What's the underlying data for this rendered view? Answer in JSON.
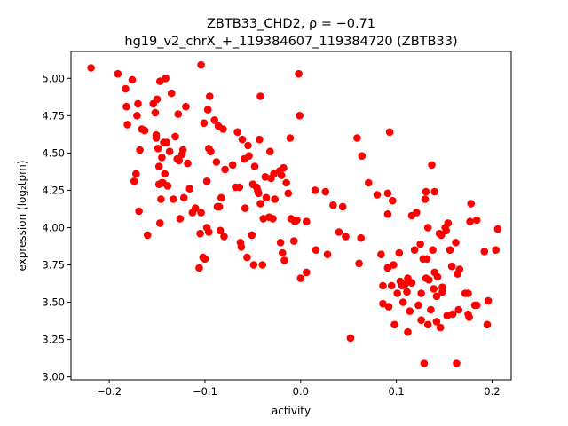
{
  "chart_data": {
    "type": "scatter",
    "title_line1": "ZBTB33_CHD2, ρ = −0.71",
    "title_line2": "hg19_v2_chrX_+_119384607_119384720 (ZBTB33)",
    "xlabel": "activity",
    "ylabel": "expression (log₂tpm)",
    "xlim": [
      -0.24,
      0.22
    ],
    "ylim": [
      2.98,
      5.18
    ],
    "grid": false,
    "marker_color": "#ff0000",
    "x_ticks": [
      -0.2,
      -0.1,
      0.0,
      0.1,
      0.2
    ],
    "x_tick_labels": [
      "−0.2",
      "−0.1",
      "0.0",
      "0.1",
      "0.2"
    ],
    "y_ticks": [
      3.0,
      3.25,
      3.5,
      3.75,
      4.0,
      4.25,
      4.5,
      4.75,
      5.0
    ],
    "y_tick_labels": [
      "3.00",
      "3.25",
      "3.50",
      "3.75",
      "4.00",
      "4.25",
      "4.50",
      "4.75",
      "5.00"
    ],
    "points": [
      [
        -0.219,
        5.07
      ],
      [
        -0.191,
        5.03
      ],
      [
        -0.183,
        4.93
      ],
      [
        -0.182,
        4.81
      ],
      [
        -0.181,
        4.69
      ],
      [
        -0.176,
        4.99
      ],
      [
        -0.174,
        4.31
      ],
      [
        -0.172,
        4.36
      ],
      [
        -0.171,
        4.75
      ],
      [
        -0.17,
        4.83
      ],
      [
        -0.169,
        4.11
      ],
      [
        -0.168,
        4.52
      ],
      [
        -0.166,
        4.66
      ],
      [
        -0.163,
        4.65
      ],
      [
        -0.16,
        3.95
      ],
      [
        -0.154,
        4.83
      ],
      [
        -0.152,
        4.77
      ],
      [
        -0.151,
        4.62
      ],
      [
        -0.151,
        4.6
      ],
      [
        -0.15,
        4.86
      ],
      [
        -0.149,
        4.53
      ],
      [
        -0.148,
        4.41
      ],
      [
        -0.148,
        4.29
      ],
      [
        -0.147,
        4.98
      ],
      [
        -0.147,
        4.03
      ],
      [
        -0.146,
        4.19
      ],
      [
        -0.145,
        4.47
      ],
      [
        -0.145,
        4.3
      ],
      [
        -0.144,
        4.3
      ],
      [
        -0.143,
        4.57
      ],
      [
        -0.142,
        4.36
      ],
      [
        -0.141,
        5.0
      ],
      [
        -0.14,
        4.57
      ],
      [
        -0.139,
        4.28
      ],
      [
        -0.137,
        4.51
      ],
      [
        -0.135,
        4.9
      ],
      [
        -0.133,
        4.19
      ],
      [
        -0.131,
        4.61
      ],
      [
        -0.129,
        4.46
      ],
      [
        -0.128,
        4.76
      ],
      [
        -0.127,
        4.45
      ],
      [
        -0.126,
        4.06
      ],
      [
        -0.124,
        4.49
      ],
      [
        -0.123,
        4.52
      ],
      [
        -0.122,
        4.2
      ],
      [
        -0.12,
        4.81
      ],
      [
        -0.118,
        4.43
      ],
      [
        -0.116,
        4.26
      ],
      [
        -0.113,
        4.1
      ],
      [
        -0.11,
        4.13
      ],
      [
        -0.106,
        3.73
      ],
      [
        -0.105,
        3.96
      ],
      [
        -0.104,
        4.1
      ],
      [
        -0.104,
        5.09
      ],
      [
        -0.102,
        3.8
      ],
      [
        -0.101,
        4.7
      ],
      [
        -0.1,
        3.79
      ],
      [
        -0.098,
        4.31
      ],
      [
        -0.098,
        4.0
      ],
      [
        -0.097,
        4.79
      ],
      [
        -0.096,
        3.97
      ],
      [
        -0.096,
        4.53
      ],
      [
        -0.095,
        4.88
      ],
      [
        -0.094,
        4.51
      ],
      [
        -0.09,
        4.72
      ],
      [
        -0.088,
        4.44
      ],
      [
        -0.087,
        4.14
      ],
      [
        -0.086,
        4.68
      ],
      [
        -0.085,
        4.14
      ],
      [
        -0.084,
        3.98
      ],
      [
        -0.083,
        4.2
      ],
      [
        -0.081,
        4.66
      ],
      [
        -0.08,
        3.94
      ],
      [
        -0.079,
        4.39
      ],
      [
        -0.071,
        4.42
      ],
      [
        -0.068,
        4.27
      ],
      [
        -0.066,
        4.64
      ],
      [
        -0.064,
        4.27
      ],
      [
        -0.063,
        3.9
      ],
      [
        -0.062,
        3.87
      ],
      [
        -0.061,
        4.59
      ],
      [
        -0.059,
        4.46
      ],
      [
        -0.058,
        4.13
      ],
      [
        -0.056,
        3.8
      ],
      [
        -0.055,
        4.55
      ],
      [
        -0.054,
        4.48
      ],
      [
        -0.051,
        3.95
      ],
      [
        -0.05,
        4.29
      ],
      [
        -0.049,
        3.75
      ],
      [
        -0.048,
        4.41
      ],
      [
        -0.046,
        4.27
      ],
      [
        -0.045,
        4.25
      ],
      [
        -0.044,
        4.23
      ],
      [
        -0.043,
        4.59
      ],
      [
        -0.042,
        4.16
      ],
      [
        -0.042,
        4.88
      ],
      [
        -0.04,
        3.75
      ],
      [
        -0.039,
        4.06
      ],
      [
        -0.037,
        4.34
      ],
      [
        -0.036,
        4.2
      ],
      [
        -0.033,
        4.07
      ],
      [
        -0.032,
        4.51
      ],
      [
        -0.031,
        4.33
      ],
      [
        -0.029,
        4.06
      ],
      [
        -0.028,
        4.36
      ],
      [
        -0.027,
        4.19
      ],
      [
        -0.022,
        4.38
      ],
      [
        -0.021,
        3.9
      ],
      [
        -0.02,
        4.35
      ],
      [
        -0.019,
        3.83
      ],
      [
        -0.018,
        4.4
      ],
      [
        -0.017,
        3.78
      ],
      [
        -0.015,
        4.3
      ],
      [
        -0.013,
        4.23
      ],
      [
        -0.011,
        4.6
      ],
      [
        -0.01,
        4.06
      ],
      [
        -0.007,
        3.91
      ],
      [
        -0.006,
        4.04
      ],
      [
        -0.004,
        4.05
      ],
      [
        -0.002,
        5.03
      ],
      [
        -0.001,
        4.75
      ],
      [
        0.0,
        3.66
      ],
      [
        0.006,
        4.04
      ],
      [
        0.006,
        3.7
      ],
      [
        0.015,
        4.25
      ],
      [
        0.016,
        3.85
      ],
      [
        0.026,
        4.24
      ],
      [
        0.028,
        3.82
      ],
      [
        0.034,
        4.15
      ],
      [
        0.04,
        3.97
      ],
      [
        0.044,
        4.14
      ],
      [
        0.047,
        3.94
      ],
      [
        0.052,
        3.26
      ],
      [
        0.059,
        4.6
      ],
      [
        0.061,
        3.76
      ],
      [
        0.063,
        3.93
      ],
      [
        0.064,
        4.48
      ],
      [
        0.071,
        4.3
      ],
      [
        0.08,
        4.22
      ],
      [
        0.084,
        3.82
      ],
      [
        0.086,
        3.61
      ],
      [
        0.086,
        3.49
      ],
      [
        0.091,
        3.73
      ],
      [
        0.091,
        4.23
      ],
      [
        0.091,
        4.09
      ],
      [
        0.092,
        3.47
      ],
      [
        0.093,
        4.64
      ],
      [
        0.095,
        3.61
      ],
      [
        0.096,
        4.18
      ],
      [
        0.097,
        3.75
      ],
      [
        0.098,
        3.35
      ],
      [
        0.101,
        3.56
      ],
      [
        0.103,
        3.83
      ],
      [
        0.104,
        3.64
      ],
      [
        0.106,
        3.61
      ],
      [
        0.107,
        3.5
      ],
      [
        0.109,
        3.62
      ],
      [
        0.111,
        3.57
      ],
      [
        0.112,
        3.66
      ],
      [
        0.112,
        3.3
      ],
      [
        0.114,
        3.44
      ],
      [
        0.116,
        3.63
      ],
      [
        0.116,
        4.08
      ],
      [
        0.119,
        3.85
      ],
      [
        0.121,
        4.1
      ],
      [
        0.123,
        3.48
      ],
      [
        0.125,
        3.89
      ],
      [
        0.126,
        3.56
      ],
      [
        0.126,
        3.38
      ],
      [
        0.128,
        3.79
      ],
      [
        0.129,
        3.09
      ],
      [
        0.13,
        4.19
      ],
      [
        0.131,
        3.66
      ],
      [
        0.131,
        4.24
      ],
      [
        0.132,
        3.79
      ],
      [
        0.133,
        3.35
      ],
      [
        0.133,
        4.0
      ],
      [
        0.134,
        3.65
      ],
      [
        0.136,
        3.45
      ],
      [
        0.137,
        4.42
      ],
      [
        0.138,
        3.85
      ],
      [
        0.139,
        3.59
      ],
      [
        0.14,
        3.7
      ],
      [
        0.14,
        4.24
      ],
      [
        0.142,
        3.37
      ],
      [
        0.142,
        3.54
      ],
      [
        0.143,
        3.67
      ],
      [
        0.145,
        3.96
      ],
      [
        0.146,
        3.33
      ],
      [
        0.147,
        3.95
      ],
      [
        0.148,
        3.57
      ],
      [
        0.148,
        3.6
      ],
      [
        0.151,
        4.0
      ],
      [
        0.152,
        3.98
      ],
      [
        0.153,
        3.41
      ],
      [
        0.154,
        4.03
      ],
      [
        0.156,
        3.85
      ],
      [
        0.158,
        3.74
      ],
      [
        0.159,
        3.42
      ],
      [
        0.162,
        3.9
      ],
      [
        0.163,
        3.09
      ],
      [
        0.164,
        3.69
      ],
      [
        0.165,
        3.45
      ],
      [
        0.166,
        3.72
      ],
      [
        0.172,
        3.56
      ],
      [
        0.175,
        3.56
      ],
      [
        0.175,
        3.42
      ],
      [
        0.176,
        3.4
      ],
      [
        0.177,
        4.04
      ],
      [
        0.178,
        4.16
      ],
      [
        0.182,
        3.48
      ],
      [
        0.184,
        4.05
      ],
      [
        0.184,
        3.48
      ],
      [
        0.192,
        3.84
      ],
      [
        0.195,
        3.35
      ],
      [
        0.196,
        3.51
      ],
      [
        0.204,
        3.85
      ],
      [
        0.206,
        3.99
      ]
    ]
  }
}
